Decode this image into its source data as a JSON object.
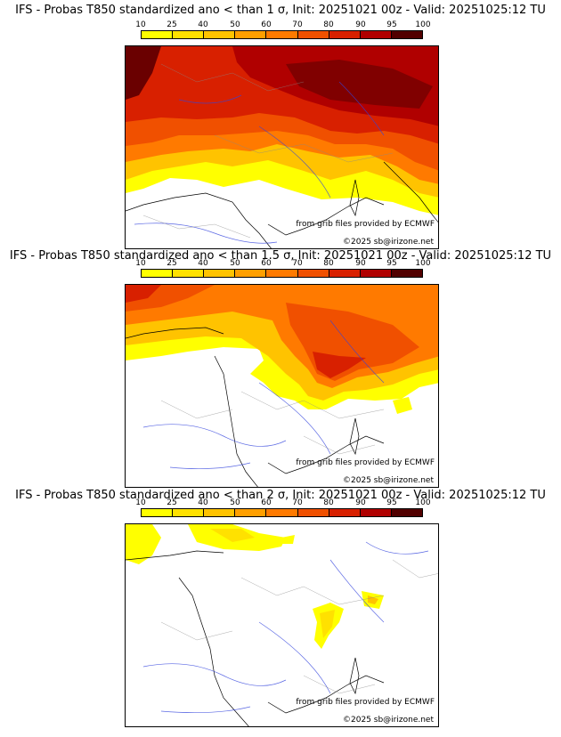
{
  "colors": {
    "c10": "#ffff00",
    "c25": "#ffe100",
    "c40": "#ffc300",
    "c50": "#ff9f00",
    "c60": "#ff7a00",
    "c70": "#f05000",
    "c80": "#d82000",
    "c90": "#b00000",
    "c95": "#800000",
    "c100": "#520000"
  },
  "legend": {
    "labels": [
      "10",
      "25",
      "40",
      "50",
      "60",
      "70",
      "80",
      "90",
      "95",
      "100"
    ]
  },
  "panels": [
    {
      "title": "IFS - Probas T850  standardized ano < than 1 σ, Init: 20251021 00z - Valid: 20251025:12 TU",
      "credit": "from grib files provided by ECMWF",
      "copyright": "©2025 sb@irizone.net"
    },
    {
      "title": "IFS - Probas T850  standardized ano < than 1.5 σ, Init: 20251021 00z - Valid: 20251025:12 TU",
      "credit": "from grib files provided by ECMWF",
      "copyright": "©2025 sb@irizone.net"
    },
    {
      "title": "IFS - Probas T850  standardized ano < than 2 σ, Init: 20251021 00z - Valid: 20251025:12 TU",
      "credit": "from grib files provided by ECMWF",
      "copyright": "©2025 sb@irizone.net"
    }
  ]
}
